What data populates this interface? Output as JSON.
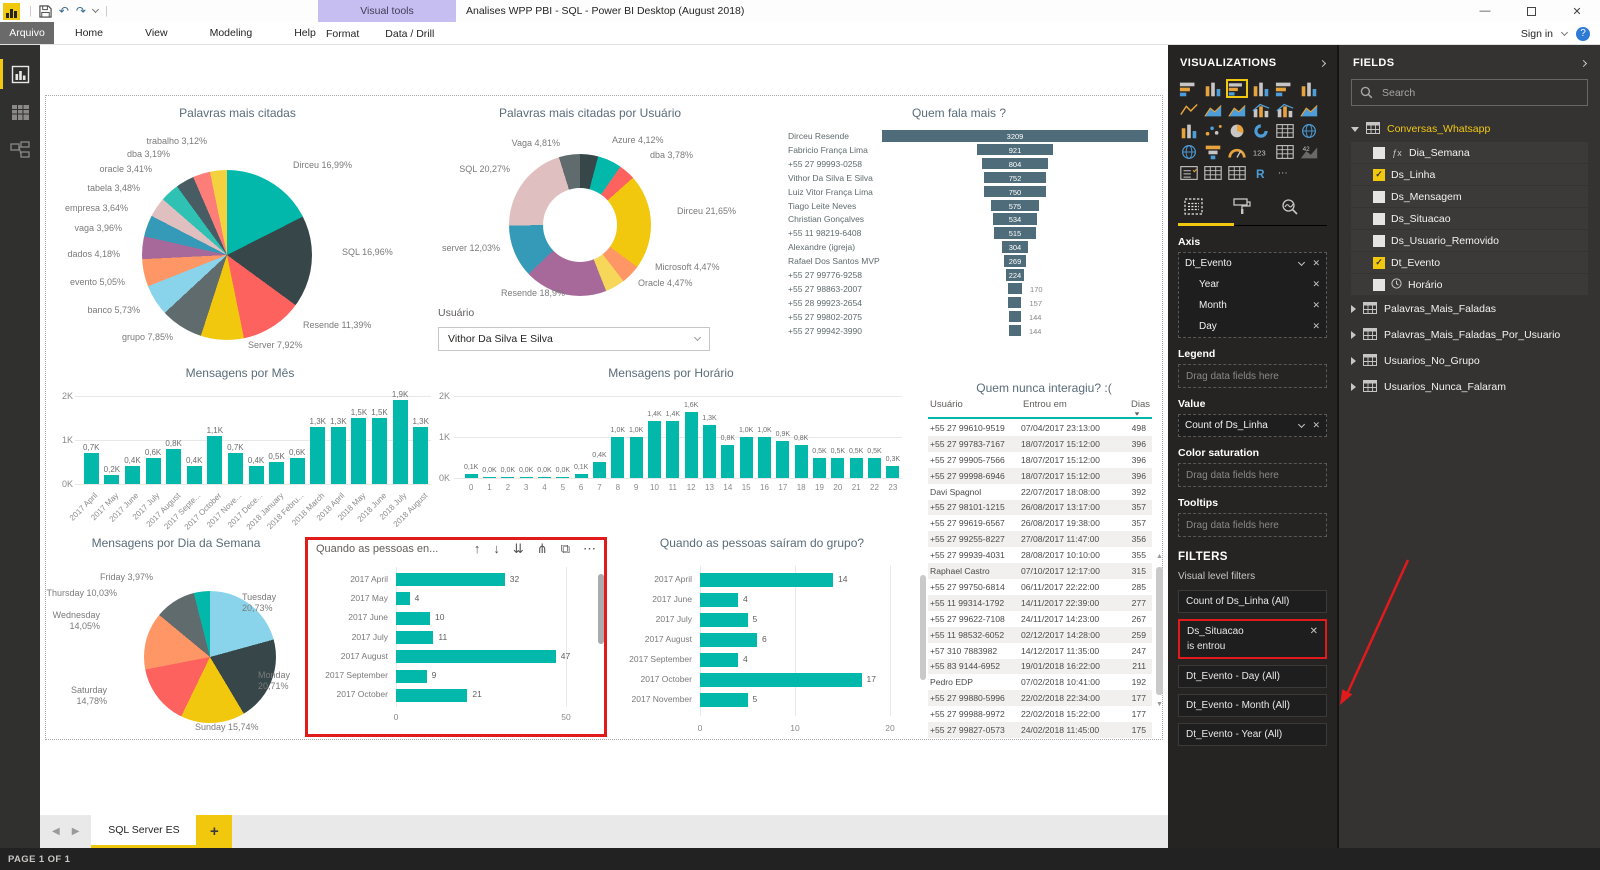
{
  "titlebar": {
    "title": "Analises WPP PBI - SQL - Power BI Desktop (August 2018)",
    "contextual_tab": "Visual tools",
    "signin": "Sign in"
  },
  "menubar": {
    "file": "Arquivo",
    "items": [
      "Home",
      "View",
      "Modeling",
      "Help"
    ],
    "visual_tools_items": [
      "Format",
      "Data / Drill"
    ]
  },
  "pagebar": {
    "active_tab": "SQL Server ES",
    "add_label": "+"
  },
  "statusbar": {
    "text": "PAGE 1 OF 1"
  },
  "accent": {
    "yellow": "#F2C80F",
    "teal": "#01B8AA",
    "red_annotation": "#E11A1C",
    "funnel_bar": "#4E6C79"
  },
  "charts": {
    "palavras": {
      "type": "pie",
      "title": "Palavras mais citadas",
      "slices": [
        {
          "label": "Dirceu",
          "pct": 16.99,
          "text": "Dirceu 16,99%",
          "color": "#01B8AA"
        },
        {
          "label": "SQL",
          "pct": 16.96,
          "text": "SQL 16,96%",
          "color": "#374649"
        },
        {
          "label": "Resende",
          "pct": 11.39,
          "text": "Resende 11,39%",
          "color": "#FD625E"
        },
        {
          "label": "Server",
          "pct": 7.92,
          "text": "Server 7,92%",
          "color": "#F2C80F"
        },
        {
          "label": "grupo",
          "pct": 7.85,
          "text": "grupo 7,85%",
          "color": "#5F6B6D"
        },
        {
          "label": "banco",
          "pct": 5.73,
          "text": "banco 5,73%",
          "color": "#8AD4EB"
        },
        {
          "label": "evento",
          "pct": 5.05,
          "text": "evento 5,05%",
          "color": "#FE9666"
        },
        {
          "label": "dados",
          "pct": 4.18,
          "text": "dados 4,18%",
          "color": "#A66999"
        },
        {
          "label": "vaga",
          "pct": 3.96,
          "text": "vaga 3,96%",
          "color": "#3599B8"
        },
        {
          "label": "empresa",
          "pct": 3.64,
          "text": "empresa 3,64%",
          "color": "#DFBFBF"
        },
        {
          "label": "tabela",
          "pct": 3.48,
          "text": "tabela 3,48%",
          "color": "#2FC1B4"
        },
        {
          "label": "oracle",
          "pct": 3.41,
          "text": "oracle 3,41%",
          "color": "#475C63"
        },
        {
          "label": "dba",
          "pct": 3.19,
          "text": "dba 3,19%",
          "color": "#FD7E79"
        },
        {
          "label": "trabalho",
          "pct": 3.12,
          "text": "trabalho 3,12%",
          "color": "#F4D13F"
        }
      ]
    },
    "palavras_usuario": {
      "type": "donut",
      "title": "Palavras mais citadas por Usuário",
      "slices": [
        {
          "label": "Azure",
          "pct": 4.12,
          "text": "Azure 4,12%",
          "color": "#374649"
        },
        {
          "label": "",
          "pct": 5.5,
          "text": "",
          "color": "#01B8AA"
        },
        {
          "label": "dba",
          "pct": 3.78,
          "text": "dba 3,78%",
          "color": "#FD625E"
        },
        {
          "label": "Dirceu",
          "pct": 21.65,
          "text": "Dirceu 21,65%",
          "color": "#F2C80F"
        },
        {
          "label": "Microsoft",
          "pct": 4.47,
          "text": "Microsoft 4,47%",
          "color": "#FE9666"
        },
        {
          "label": "Oracle",
          "pct": 4.47,
          "text": "Oracle 4,47%",
          "color": "#F6D75A"
        },
        {
          "label": "Resende",
          "pct": 18.9,
          "text": "Resende 18,9%",
          "color": "#A66999"
        },
        {
          "label": "server",
          "pct": 12.03,
          "text": "server 12,03%",
          "color": "#3599B8"
        },
        {
          "label": "SQL",
          "pct": 20.27,
          "text": "SQL 20,27%",
          "color": "#DFBFBF"
        },
        {
          "label": "Vaga",
          "pct": 4.81,
          "text": "Vaga 4,81%",
          "color": "#5F6B6D"
        }
      ]
    },
    "slicer": {
      "label": "Usuário",
      "value": "Vithor Da Silva E Silva"
    },
    "fala_mais": {
      "type": "funnel",
      "title": "Quem fala mais ?",
      "bars": [
        [
          "Dirceu Resende",
          3209
        ],
        [
          "Fabricio França Lima",
          921
        ],
        [
          "+55 27 99993-0258",
          804
        ],
        [
          "Vithor Da Silva E Silva",
          752
        ],
        [
          "Luiz Vitor França Lima",
          750
        ],
        [
          "Tiago Leite Neves",
          575
        ],
        [
          "Christian Gonçalves",
          534
        ],
        [
          "+55 11 98219-6408",
          515
        ],
        [
          "Alexandre (igreja)",
          304
        ],
        [
          "Rafael Dos Santos MVP",
          269
        ],
        [
          "+55 27 99776-9258",
          224
        ],
        [
          "+55 27 98863-2007",
          170
        ],
        [
          "+55 28 99923-2654",
          157
        ],
        [
          "+55 27 99802-2075",
          144
        ],
        [
          "+55 27 99942-3990",
          144
        ]
      ]
    },
    "por_mes": {
      "type": "column",
      "title": "Mensagens por Mês",
      "ymax": 2,
      "yticks": [
        "2K",
        "1K",
        "0K"
      ],
      "categories": [
        "2017 April",
        "2017 May",
        "2017 June",
        "2017 July",
        "2017 August",
        "2017 Septe...",
        "2017 October",
        "2017 Nove...",
        "2017 Dece...",
        "2018 January",
        "2018 Febru...",
        "2018 March",
        "2018 April",
        "2018 May",
        "2018 June",
        "2018 July",
        "2018 August"
      ],
      "values": [
        0.7,
        0.2,
        0.4,
        0.6,
        0.8,
        0.4,
        1.1,
        0.7,
        0.4,
        0.5,
        0.6,
        1.3,
        1.3,
        1.5,
        1.5,
        1.9,
        1.3
      ],
      "labels": [
        "0,7K",
        "0,2K",
        "0,4K",
        "0,6K",
        "0,8K",
        "0,4K",
        "1,1K",
        "0,7K",
        "0,4K",
        "0,5K",
        "0,6K",
        "1,3K",
        "1,3K",
        "1,5K",
        "1,5K",
        "1,9K",
        "1,3K"
      ]
    },
    "por_horario": {
      "type": "column",
      "title": "Mensagens por Horário",
      "ymax": 2,
      "yticks": [
        "2K",
        "1K",
        "0K"
      ],
      "categories": [
        0,
        1,
        2,
        3,
        4,
        5,
        6,
        7,
        8,
        9,
        10,
        11,
        12,
        13,
        14,
        15,
        16,
        17,
        18,
        19,
        20,
        21,
        22,
        23
      ],
      "values": [
        0.1,
        0.02,
        0.02,
        0.02,
        0.02,
        0.03,
        0.1,
        0.4,
        1.0,
        1.0,
        1.4,
        1.4,
        1.6,
        1.3,
        0.8,
        1.0,
        1.0,
        0.9,
        0.8,
        0.5,
        0.5,
        0.5,
        0.5,
        0.3
      ],
      "labels": [
        "0,1K",
        "0,0K",
        "0,0K",
        "0,0K",
        "0,0K",
        "0,0K",
        "0,1K",
        "0,4K",
        "1,0K",
        "1,0K",
        "1,4K",
        "1,4K",
        "1,6K",
        "1,3K",
        "0,8K",
        "1,0K",
        "1,0K",
        "0,9K",
        "0,8K",
        "0,5K",
        "0,5K",
        "0,5K",
        "0,5K",
        "0,3K"
      ]
    },
    "nunca_interagiu": {
      "type": "table",
      "title": "Quem nunca interagiu? :(",
      "columns": [
        "Usuário",
        "Entrou em",
        "Dias"
      ],
      "rows": [
        [
          "+55 27 99610-9519",
          "07/04/2017 23:13:00",
          "498"
        ],
        [
          "+55 27 99783-7167",
          "18/07/2017 15:12:00",
          "396"
        ],
        [
          "+55 27 99905-7566",
          "18/07/2017 15:12:00",
          "396"
        ],
        [
          "+55 27 99998-6946",
          "18/07/2017 15:12:00",
          "396"
        ],
        [
          "Davi Spagnol",
          "22/07/2017 18:08:00",
          "392"
        ],
        [
          "+55 27 98101-1215",
          "26/08/2017 13:17:00",
          "357"
        ],
        [
          "+55 27 99619-6567",
          "26/08/2017 19:38:00",
          "357"
        ],
        [
          "+55 27 99255-8227",
          "27/08/2017 11:47:00",
          "356"
        ],
        [
          "+55 27 99939-4031",
          "28/08/2017 10:10:00",
          "355"
        ],
        [
          "Raphael Castro",
          "07/10/2017 12:17:00",
          "315"
        ],
        [
          "+55 27 99750-6814",
          "06/11/2017 22:22:00",
          "285"
        ],
        [
          "+55 11 99314-1792",
          "14/11/2017 22:39:00",
          "277"
        ],
        [
          "+55 27 99622-7108",
          "24/11/2017 14:23:00",
          "267"
        ],
        [
          "+55 11 98532-6052",
          "02/12/2017 14:28:00",
          "259"
        ],
        [
          "+57 310 7883982",
          "14/12/2017 11:35:00",
          "247"
        ],
        [
          "+55 83 9144-6952",
          "19/01/2018 16:22:00",
          "211"
        ],
        [
          "Pedro EDP",
          "07/02/2018 10:41:00",
          "192"
        ],
        [
          "+55 27 99880-5996",
          "22/02/2018 22:34:00",
          "177"
        ],
        [
          "+55 27 99988-9972",
          "22/02/2018 15:22:00",
          "177"
        ],
        [
          "+55 27 99827-0573",
          "24/02/2018 11:45:00",
          "175"
        ]
      ]
    },
    "dia_semana": {
      "type": "pie",
      "title": "Mensagens por Dia da Semana",
      "slices": [
        {
          "label": "Tuesday",
          "pct": 20.73,
          "text": "Tuesday 20,73%",
          "color": "#8AD4EB"
        },
        {
          "label": "Monday",
          "pct": 20.71,
          "text": "Monday\n20,71%",
          "color": "#374649"
        },
        {
          "label": "Sunday",
          "pct": 15.74,
          "text": "Sunday 15,74%",
          "color": "#F2C80F"
        },
        {
          "label": "Saturday",
          "pct": 14.78,
          "text": "Saturday\n14,78%",
          "color": "#FD625E"
        },
        {
          "label": "Wednesday",
          "pct": 14.05,
          "text": "Wednesday\n14,05%",
          "color": "#FE9666"
        },
        {
          "label": "Thursday",
          "pct": 10.03,
          "text": "Thursday 10,03%",
          "color": "#5F6B6D"
        },
        {
          "label": "Friday",
          "pct": 3.97,
          "text": "Friday 3,97%",
          "color": "#01B8AA"
        }
      ]
    },
    "entraram": {
      "type": "bar",
      "title": "Quando as pessoas en...",
      "toolbar": [
        "drill-up",
        "drill-down",
        "go-to-next-level",
        "expand-all",
        "focus-mode",
        "more-options"
      ],
      "toolbar_glyphs": [
        "↑",
        "↓",
        "⇊",
        "⋔",
        "⧉",
        "⋯"
      ],
      "categories": [
        "2017 April",
        "2017 May",
        "2017 June",
        "2017 July",
        "2017 August",
        "2017 September",
        "2017 October"
      ],
      "values": [
        32,
        4,
        10,
        11,
        47,
        9,
        21
      ],
      "xmax": 50,
      "xticks": [
        "0",
        "50"
      ]
    },
    "sairam": {
      "type": "bar",
      "title": "Quando as pessoas saíram do grupo?",
      "categories": [
        "2017 April",
        "2017 June",
        "2017 July",
        "2017 August",
        "2017 September",
        "2017 October",
        "2017 November"
      ],
      "values": [
        14,
        4,
        5,
        6,
        4,
        17,
        5
      ],
      "xmax": 20,
      "xticks": [
        "0",
        "10",
        "20"
      ]
    }
  },
  "viz_panel": {
    "title": "VISUALIZATIONS",
    "icons": [
      "stacked-bar",
      "stacked-column",
      "clustered-bar",
      "clustered-column",
      "100-stacked-bar",
      "100-stacked-column",
      "line",
      "area",
      "stacked-area",
      "line-clustered-column",
      "line-stacked-column",
      "ribbon",
      "waterfall",
      "scatter",
      "pie",
      "donut",
      "treemap",
      "map",
      "filled-map",
      "funnel",
      "gauge",
      "card",
      "multi-row-card",
      "kpi",
      "slicer",
      "table",
      "matrix",
      "r-script",
      "more"
    ],
    "selected_icon": "clustered-bar",
    "sections": {
      "axis": "Axis",
      "legend": "Legend",
      "value": "Value",
      "color_saturation": "Color saturation",
      "tooltips": "Tooltips"
    },
    "axis_fields": [
      "Dt_Evento",
      "Year",
      "Month",
      "Day"
    ],
    "value_field": "Count of Ds_Linha",
    "drag_hint": "Drag data fields here",
    "filters_title": "FILTERS",
    "visual_level_label": "Visual level filters",
    "filters": [
      {
        "text": "Count of Ds_Linha  (All)",
        "highlighted": false
      },
      {
        "text": "Ds_Situacao",
        "sub": "is entrou",
        "highlighted": true
      },
      {
        "text": "Dt_Evento - Day  (All)",
        "highlighted": false
      },
      {
        "text": "Dt_Evento - Month  (All)",
        "highlighted": false
      },
      {
        "text": "Dt_Evento - Year  (All)",
        "highlighted": false
      }
    ]
  },
  "fields_panel": {
    "title": "FIELDS",
    "search_placeholder": "Search",
    "tables": [
      {
        "name": "Conversas_Whatsapp",
        "expanded": true,
        "fields": [
          {
            "name": "Dia_Semana",
            "checked": false,
            "icon": "fx"
          },
          {
            "name": "Ds_Linha",
            "checked": true,
            "icon": ""
          },
          {
            "name": "Ds_Mensagem",
            "checked": false,
            "icon": ""
          },
          {
            "name": "Ds_Situacao",
            "checked": false,
            "icon": ""
          },
          {
            "name": "Ds_Usuario_Removido",
            "checked": false,
            "icon": ""
          },
          {
            "name": "Dt_Evento",
            "checked": true,
            "icon": ""
          },
          {
            "name": "Horário",
            "checked": false,
            "icon": "clock"
          }
        ]
      },
      {
        "name": "Palavras_Mais_Faladas",
        "expanded": false,
        "fields": []
      },
      {
        "name": "Palavras_Mais_Faladas_Por_Usuario",
        "expanded": false,
        "fields": []
      },
      {
        "name": "Usuarios_No_Grupo",
        "expanded": false,
        "fields": []
      },
      {
        "name": "Usuarios_Nunca_Falaram",
        "expanded": false,
        "fields": []
      }
    ]
  }
}
